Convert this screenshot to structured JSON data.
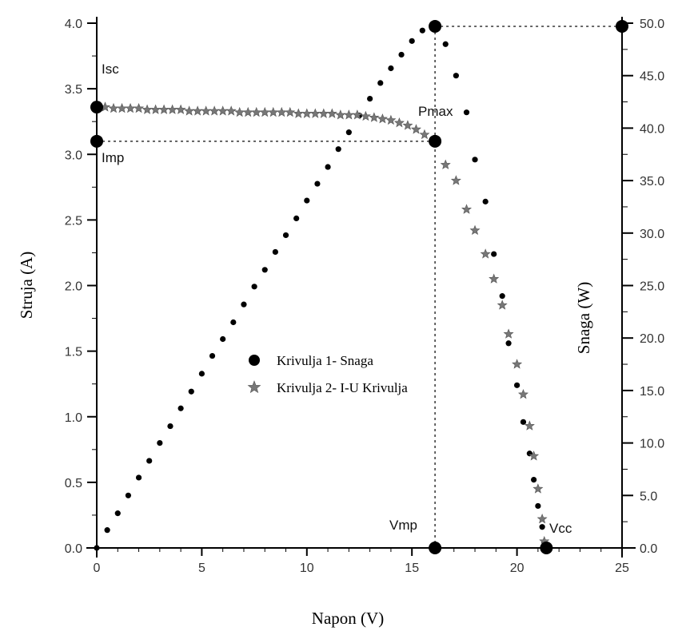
{
  "chart_data": {
    "type": "scatter",
    "title": "",
    "xlabel": "Napon (V)",
    "ylabel_left": "Struja (A)",
    "ylabel_right": "Snaga (W)",
    "xlim": [
      0,
      25
    ],
    "ylim_left": [
      0,
      4.0
    ],
    "ylim_right": [
      0,
      50.0
    ],
    "x_ticks": [
      "0",
      "5",
      "10",
      "15",
      "20",
      "25"
    ],
    "y_left_ticks": [
      "0.0",
      "0.5",
      "1.0",
      "1.5",
      "2.0",
      "2.5",
      "3.0",
      "3.5",
      "4.0"
    ],
    "y_right_ticks": [
      "0.0",
      "5.0",
      "10.0",
      "15.0",
      "20.0",
      "25.0",
      "30.0",
      "35.0",
      "40.0",
      "45.0",
      "50.0"
    ],
    "grid": false,
    "legend_position": "center",
    "series": [
      {
        "name": "Krivulja 1- Snaga",
        "axis": "right",
        "marker": "circle",
        "color": "#000000",
        "x": [
          0,
          0.5,
          1.0,
          1.5,
          2.0,
          2.5,
          3.0,
          3.5,
          4.0,
          4.5,
          5.0,
          5.5,
          6.0,
          6.5,
          7.0,
          7.5,
          8.0,
          8.5,
          9.0,
          9.5,
          10.0,
          10.5,
          11.0,
          11.5,
          12.0,
          12.5,
          13.0,
          13.5,
          14.0,
          14.5,
          15.0,
          15.5,
          16.1,
          16.6,
          17.1,
          17.6,
          18.0,
          18.5,
          18.9,
          19.3,
          19.6,
          20.0,
          20.3,
          20.6,
          20.8,
          21.0,
          21.2,
          21.3
        ],
        "y": [
          0,
          1.7,
          3.3,
          5.0,
          6.7,
          8.3,
          10.0,
          11.6,
          13.3,
          14.9,
          16.6,
          18.3,
          19.9,
          21.5,
          23.2,
          24.9,
          26.5,
          28.2,
          29.8,
          31.4,
          33.1,
          34.7,
          36.3,
          38.0,
          39.6,
          41.2,
          42.8,
          44.3,
          45.7,
          47.0,
          48.3,
          49.3,
          49.7,
          48.0,
          45.0,
          41.5,
          37.0,
          33.0,
          28.0,
          24.0,
          19.5,
          15.5,
          12.0,
          9.0,
          6.5,
          4.0,
          2.0,
          0.5
        ]
      },
      {
        "name": "Krivulja 2- I-U Krivulja",
        "axis": "left",
        "marker": "star",
        "color": "#777777",
        "x": [
          0,
          0.4,
          0.8,
          1.2,
          1.6,
          2.0,
          2.4,
          2.8,
          3.2,
          3.6,
          4.0,
          4.4,
          4.8,
          5.2,
          5.6,
          6.0,
          6.4,
          6.8,
          7.2,
          7.6,
          8.0,
          8.4,
          8.8,
          9.2,
          9.6,
          10.0,
          10.4,
          10.8,
          11.2,
          11.6,
          12.0,
          12.4,
          12.8,
          13.2,
          13.6,
          14.0,
          14.4,
          14.8,
          15.2,
          15.6,
          16.1,
          16.6,
          17.1,
          17.6,
          18.0,
          18.5,
          18.9,
          19.3,
          19.6,
          20.0,
          20.3,
          20.6,
          20.8,
          21.0,
          21.2,
          21.3
        ],
        "y": [
          3.36,
          3.36,
          3.35,
          3.35,
          3.35,
          3.35,
          3.34,
          3.34,
          3.34,
          3.34,
          3.34,
          3.33,
          3.33,
          3.33,
          3.33,
          3.33,
          3.33,
          3.32,
          3.32,
          3.32,
          3.32,
          3.32,
          3.32,
          3.32,
          3.31,
          3.31,
          3.31,
          3.31,
          3.31,
          3.3,
          3.3,
          3.3,
          3.29,
          3.28,
          3.27,
          3.26,
          3.24,
          3.22,
          3.19,
          3.15,
          3.1,
          2.92,
          2.8,
          2.58,
          2.42,
          2.24,
          2.05,
          1.85,
          1.63,
          1.4,
          1.17,
          0.93,
          0.7,
          0.45,
          0.22,
          0.05
        ]
      }
    ],
    "markers": [
      {
        "label": "Isc",
        "x": 0,
        "y": 3.36,
        "axis": "left"
      },
      {
        "label": "Imp",
        "x": 0,
        "y": 3.1,
        "axis": "left"
      },
      {
        "label": "Pmax",
        "x": 16.1,
        "y": 3.1,
        "axis": "left"
      },
      {
        "label": "Vmp",
        "x": 16.1,
        "y": 0,
        "axis": "left"
      },
      {
        "label": "Vcc",
        "x": 21.4,
        "y": 0,
        "axis": "left"
      },
      {
        "label": "",
        "x": 16.1,
        "y": 49.7,
        "axis": "right"
      },
      {
        "label": "",
        "x": 25,
        "y": 49.7,
        "axis": "right"
      }
    ]
  }
}
